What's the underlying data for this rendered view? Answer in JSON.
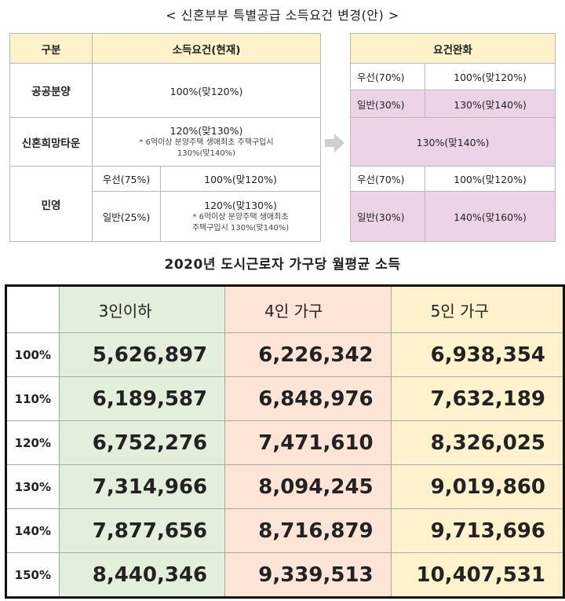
{
  "title_top": "< 신혼부부 특별공급 소득요건 변경(안) >",
  "current_table": {
    "header_category": "구분",
    "header_current": "소득요건(현재)",
    "rows": {
      "public_label": "공공분양",
      "public_value": "100%(맞120%)",
      "newlywed_label": "신혼희망타운",
      "newlywed_value": "120%(맞130%)",
      "newlywed_note_1": "* 6억이상 분양주택 생애최초 주택구입시",
      "newlywed_note_2": "130%(맞140%)",
      "private_label": "민영",
      "priority_label": "우선(75%)",
      "priority_value": "100%(맞120%)",
      "general_label": "일반(25%)",
      "general_value": "120%(맞130%)",
      "general_note_1": "* 6억이상 분양주택 생애최초",
      "general_note_2": "주택구입시 130%(맞140%)"
    }
  },
  "relaxed_table": {
    "header": "요건완화",
    "public_priority_label": "우선(70%)",
    "public_priority_value": "100%(맞120%)",
    "public_general_label": "일반(30%)",
    "public_general_value": "130%(맞140%)",
    "newlywed_value": "130%(맞140%)",
    "private_priority_label": "우선(70%)",
    "private_priority_value": "100%(맞120%)",
    "private_general_label": "일반(30%)",
    "private_general_value": "140%(맞160%)"
  },
  "title_income": "2020년 도시근로자 가구당 월평균 소득",
  "income_table": {
    "headers": [
      "3인이하",
      "4인 가구",
      "5인 가구"
    ],
    "rows": [
      {
        "pct": "100%",
        "values": [
          "5,626,897",
          "6,226,342",
          "6,938,354"
        ]
      },
      {
        "pct": "110%",
        "values": [
          "6,189,587",
          "6,848,976",
          "7,632,189"
        ]
      },
      {
        "pct": "120%",
        "values": [
          "6,752,276",
          "7,471,610",
          "8,326,025"
        ]
      },
      {
        "pct": "130%",
        "values": [
          "7,314,966",
          "8,094,245",
          "9,019,860"
        ]
      },
      {
        "pct": "140%",
        "values": [
          "7,877,656",
          "8,716,879",
          "9,713,696"
        ]
      },
      {
        "pct": "150%",
        "values": [
          "8,440,346",
          "9,339,513",
          "10,407,531"
        ]
      }
    ]
  },
  "colors": {
    "header_yellow": "#fdf2c9",
    "relaxed_pink": "#ecd3e8",
    "col_green": "#e2efda",
    "col_orange": "#fce4d6",
    "col_yellow": "#fff2cc"
  },
  "icons": {
    "arrow": "right-arrow-icon"
  }
}
